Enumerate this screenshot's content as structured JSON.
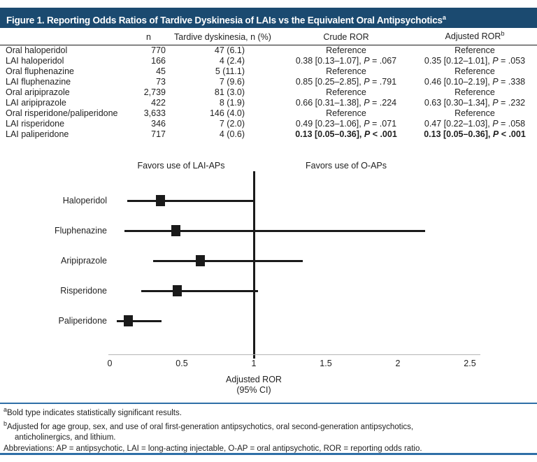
{
  "figure": {
    "title": "Figure 1. Reporting Odds Ratios of Tardive Dyskinesia of LAIs vs the Equivalent Oral Antipsychotics",
    "title_superscript": "a"
  },
  "colors": {
    "title_bar_bg": "#1b4a70",
    "title_text": "#ffffff",
    "separator_blue": "#2f6fa7",
    "body_text": "#1f1f1f",
    "marker_black": "#1a1a1a",
    "axis_line_gray": "#b5b5b5"
  },
  "table": {
    "headers": {
      "drug": "",
      "n": "n",
      "td": "Tardive dyskinesia, n (%)",
      "crude": "Crude ROR",
      "adjusted": "Adjusted ROR",
      "adjusted_superscript": "b"
    },
    "reference_label": "Reference",
    "p_label": "P",
    "rows": [
      {
        "drug": "Oral haloperidol",
        "n": "770",
        "td": "47 (6.1)",
        "crude": {
          "ref": true
        },
        "adjusted": {
          "ref": true
        }
      },
      {
        "drug": "LAI haloperidol",
        "n": "166",
        "td": "4 (2.4)",
        "crude": {
          "est": "0.38 [0.13–1.07]",
          "p": "= .067",
          "bold": false
        },
        "adjusted": {
          "est": "0.35 [0.12–1.01]",
          "p": "= .053",
          "bold": false
        }
      },
      {
        "drug": "Oral fluphenazine",
        "n": "45",
        "td": "5 (11.1)",
        "crude": {
          "ref": true
        },
        "adjusted": {
          "ref": true
        }
      },
      {
        "drug": "LAI fluphenazine",
        "n": "73",
        "td": "7 (9.6)",
        "crude": {
          "est": "0.85 [0.25–2.85]",
          "p": "= .791",
          "bold": false
        },
        "adjusted": {
          "est": "0.46 [0.10–2.19]",
          "p": "= .338",
          "bold": false
        }
      },
      {
        "drug": "Oral aripiprazole",
        "n": "2,739",
        "td": "81 (3.0)",
        "crude": {
          "ref": true
        },
        "adjusted": {
          "ref": true
        }
      },
      {
        "drug": "LAI aripiprazole",
        "n": "422",
        "td": "8 (1.9)",
        "crude": {
          "est": "0.66 [0.31–1.38]",
          "p": "= .224",
          "bold": false
        },
        "adjusted": {
          "est": "0.63 [0.30–1.34]",
          "p": "= .232",
          "bold": false
        }
      },
      {
        "drug": "Oral risperidone/paliperidone",
        "n": "3,633",
        "td": "146 (4.0)",
        "crude": {
          "ref": true
        },
        "adjusted": {
          "ref": true
        }
      },
      {
        "drug": "LAI risperidone",
        "n": "346",
        "td": "7 (2.0)",
        "crude": {
          "est": "0.49 [0.23–1.06]",
          "p": "= .071",
          "bold": false
        },
        "adjusted": {
          "est": "0.47 [0.22–1.03]",
          "p": "= .058",
          "bold": false
        }
      },
      {
        "drug": "LAI paliperidone",
        "n": "717",
        "td": "4 (0.6)",
        "crude": {
          "est": "0.13 [0.05–0.36]",
          "p": "< .001",
          "bold": true
        },
        "adjusted": {
          "est": "0.13 [0.05–0.36]",
          "p": "< .001",
          "bold": true
        }
      }
    ]
  },
  "chart_data": {
    "type": "forest",
    "categories": [
      "Haloperidol",
      "Fluphenazine",
      "Aripiprazole",
      "Risperidone",
      "Paliperidone"
    ],
    "estimates": [
      0.35,
      0.46,
      0.63,
      0.47,
      0.13
    ],
    "ci_low": [
      0.12,
      0.1,
      0.3,
      0.22,
      0.05
    ],
    "ci_high": [
      1.01,
      2.19,
      1.34,
      1.03,
      0.36
    ],
    "xlim": [
      0,
      2.5
    ],
    "xticks": [
      0,
      0.5,
      1,
      1.5,
      2,
      2.5
    ],
    "xtick_labels": [
      "0",
      "0.5",
      "1",
      "1.5",
      "2",
      "2.5"
    ],
    "reference_line": 1,
    "xlabel_line1": "Adjusted ROR",
    "xlabel_line2": "(95% CI)",
    "left_annotation": "Favors use of LAI-APs",
    "right_annotation": "Favors use of O-APs",
    "marker": "square",
    "grid": false,
    "legend": false
  },
  "footnotes": {
    "a_superscript": "a",
    "a": "Bold type indicates statistically significant results.",
    "b_superscript": "b",
    "b_line1": "Adjusted for age group, sex, and use of oral first-generation antipsychotics, oral second-generation antipsychotics,",
    "b_line2": "anticholinergics, and lithium.",
    "abbreviations": "Abbreviations: AP = antipsychotic, LAI = long-acting injectable, O-AP = oral antipsychotic, ROR = reporting odds ratio."
  }
}
